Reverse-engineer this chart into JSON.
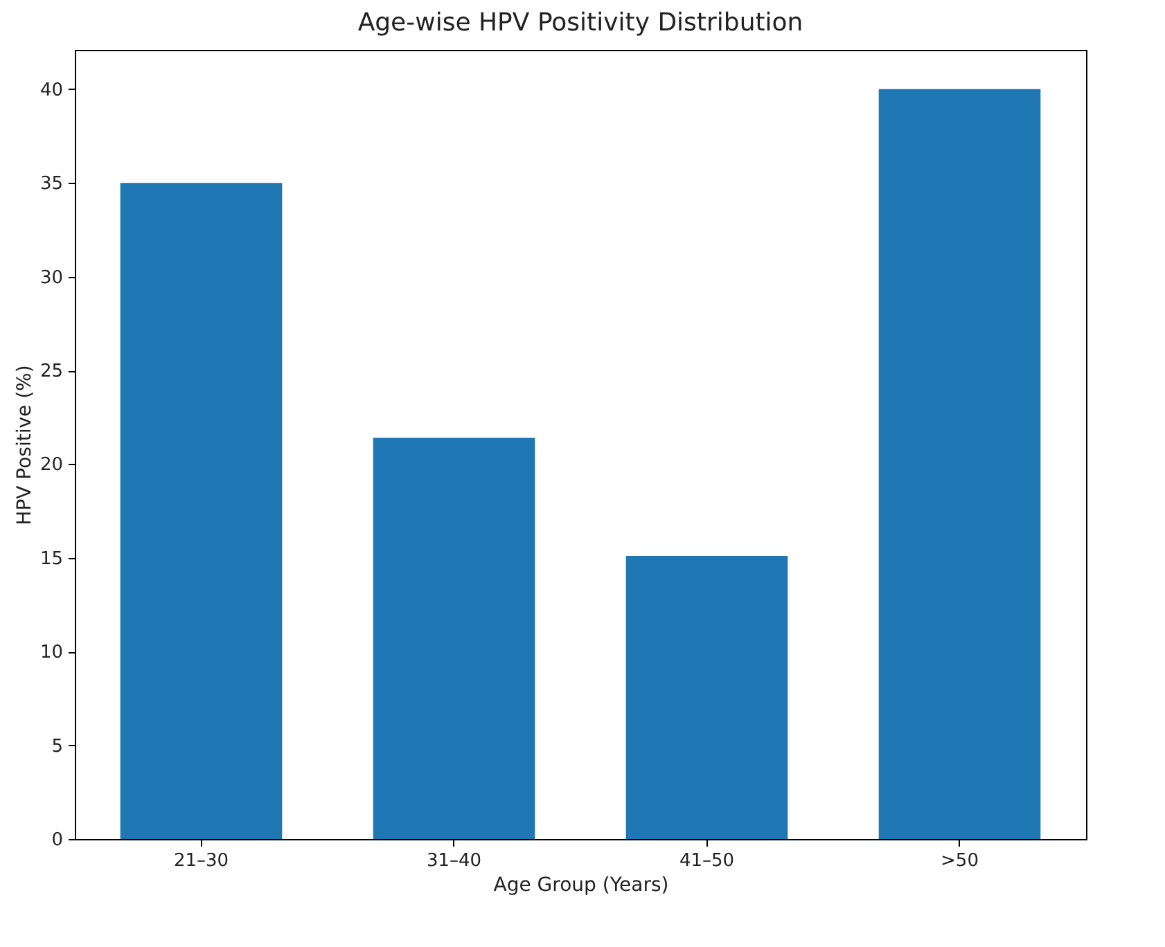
{
  "chart_data": {
    "type": "bar",
    "title": "Age-wise HPV Positivity Distribution",
    "xlabel": "Age Group (Years)",
    "ylabel": "HPV Positive (%)",
    "categories": [
      "21–30",
      "31–40",
      "41–50",
      ">50"
    ],
    "values": [
      35,
      21.4,
      15.1,
      40
    ],
    "color": "#1f77b4",
    "ylim": [
      0,
      42.1
    ],
    "yticks": [
      0,
      5,
      10,
      15,
      20,
      25,
      30,
      35,
      40
    ],
    "grid": false
  }
}
